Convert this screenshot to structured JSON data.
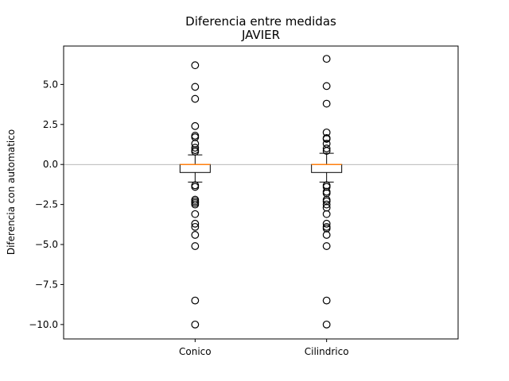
{
  "chart_data": {
    "type": "box",
    "title": "Diferencia entre medidas",
    "subtitle": "JAVIER",
    "xlabel": "",
    "ylabel": "Diferencia con automatico",
    "ylim": [
      -10.9,
      7.4
    ],
    "yticks": [
      {
        "value": 5.0,
        "label": "5.0"
      },
      {
        "value": 2.5,
        "label": "2.5"
      },
      {
        "value": 0.0,
        "label": "0.0"
      },
      {
        "value": -2.5,
        "label": "−2.5"
      },
      {
        "value": -5.0,
        "label": "−5.0"
      },
      {
        "value": -7.5,
        "label": "−7.5"
      },
      {
        "value": -10.0,
        "label": "−10.0"
      }
    ],
    "reference_line": 0.0,
    "categories": [
      "Conico",
      "Cilindrico"
    ],
    "series": [
      {
        "q1": -0.5,
        "median": 0.0,
        "q3": 0.0,
        "whisker_low": -1.1,
        "whisker_high": 0.6,
        "outliers": [
          6.2,
          4.85,
          4.1,
          2.4,
          1.8,
          1.7,
          1.3,
          1.05,
          0.9,
          0.8,
          -1.3,
          -1.4,
          -2.2,
          -2.3,
          -2.4,
          -2.5,
          -3.1,
          -3.7,
          -3.9,
          -4.4,
          -5.1,
          -8.5,
          -10.0
        ]
      },
      {
        "q1": -0.5,
        "median": 0.0,
        "q3": 0.0,
        "whisker_low": -1.1,
        "whisker_high": 0.7,
        "outliers": [
          6.6,
          4.9,
          3.8,
          2.0,
          1.65,
          1.6,
          1.3,
          1.0,
          0.85,
          -1.3,
          -1.4,
          -1.7,
          -1.8,
          -2.2,
          -2.3,
          -2.5,
          -2.7,
          -3.1,
          -3.7,
          -3.9,
          -4.0,
          -4.4,
          -5.1,
          -8.5,
          -10.0
        ]
      }
    ],
    "colors": {
      "box": "#000000",
      "median": "#ff7f0e",
      "reference_line": "#a0a0a0",
      "outlier": "#000000"
    }
  }
}
